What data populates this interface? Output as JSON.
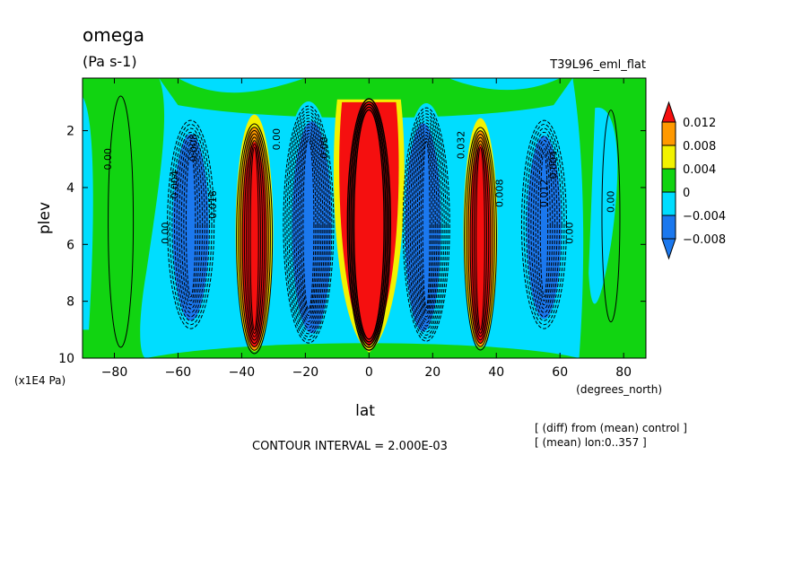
{
  "chart_data": {
    "type": "heatmap",
    "title": "omega",
    "subtitle": "(Pa s-1)",
    "run_label": "T39L96_eml_flat",
    "xlabel": "lat",
    "x_unit": "(degrees_north)",
    "ylabel": "plev",
    "y_unit": "(x1E4 Pa)",
    "xlim": [
      -90,
      87
    ],
    "ylim": [
      10,
      0.15
    ],
    "x_ticks": [
      -80,
      -60,
      -40,
      -20,
      0,
      20,
      40,
      60,
      80
    ],
    "y_ticks": [
      2,
      4,
      6,
      8,
      10
    ],
    "contour_interval_text": "CONTOUR INTERVAL = 2.000E-03",
    "notes": [
      "[ (diff) from (mean) control ]",
      "[ (mean) lon:0..357 ]"
    ],
    "colorbar": {
      "labels": [
        "0.012",
        "0.008",
        "0.004",
        "0",
        "−0.004",
        "−0.008"
      ],
      "colors": [
        "#f50f0f",
        "#ff9900",
        "#f2f200",
        "#11d411",
        "#00ddff",
        "#1b78ee"
      ],
      "extend_top_color": "#f50f0f",
      "extend_bottom_color": "#1b78ee"
    },
    "contour_labels": [
      "0.00",
      "0.00",
      "0.004",
      "0.008",
      "0.016",
      "0.00",
      "0.00",
      "0.008",
      "0.012",
      "0.004",
      "0.00",
      "0.00",
      "0.032"
    ],
    "cells": [
      {
        "lat": [
          -90,
          -76
        ],
        "plev": [
          0.15,
          10
        ],
        "level": "0"
      },
      {
        "lat": [
          -76,
          -66
        ],
        "plev": [
          0.15,
          10
        ],
        "level": "0"
      },
      {
        "lat": [
          -66,
          -46
        ],
        "plev": [
          1.3,
          9.6
        ],
        "level": "-0.008"
      },
      {
        "lat": [
          -45,
          -27
        ],
        "plev": [
          1.6,
          10
        ],
        "level": ">0.012"
      },
      {
        "lat": [
          -28,
          -10
        ],
        "plev": [
          1.2,
          10
        ],
        "level": "-0.008"
      },
      {
        "lat": [
          -10,
          10
        ],
        "plev": [
          0.9,
          9.6
        ],
        "level": ">0.012"
      },
      {
        "lat": [
          10,
          26
        ],
        "plev": [
          1.2,
          9.8
        ],
        "level": "-0.008"
      },
      {
        "lat": [
          27,
          43
        ],
        "plev": [
          1.6,
          9.9
        ],
        "level": ">0.012"
      },
      {
        "lat": [
          45,
          65
        ],
        "plev": [
          1.3,
          9.6
        ],
        "level": "-0.008"
      },
      {
        "lat": [
          66,
          86
        ],
        "plev": [
          0.9,
          10
        ],
        "level": "0"
      }
    ]
  }
}
